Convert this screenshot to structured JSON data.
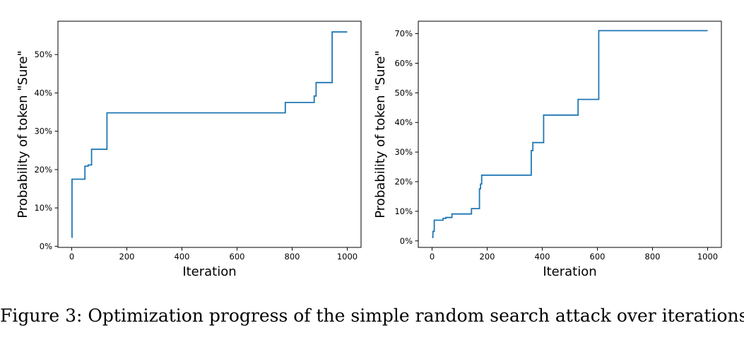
{
  "chart_data": [
    {
      "type": "line",
      "xlabel": "Iteration",
      "ylabel": "Probability of token \"Sure\"",
      "xlim": [
        -50,
        1050
      ],
      "ylim": [
        -0.3,
        58.7
      ],
      "xticks": [
        0,
        200,
        400,
        600,
        800,
        1000
      ],
      "yticks": [
        0,
        10,
        20,
        30,
        40,
        50
      ],
      "ytick_labels": [
        "0%",
        "10%",
        "20%",
        "30%",
        "40%",
        "50%"
      ],
      "grid": false,
      "line_color": "#1f77b4",
      "series": [
        {
          "step": true,
          "x": [
            0,
            1,
            48,
            60,
            72,
            128,
            775,
            880,
            887,
            945,
            1000
          ],
          "y": [
            2.3,
            17.5,
            20.9,
            21.2,
            25.3,
            34.8,
            37.5,
            39.2,
            42.7,
            55.9,
            55.9
          ]
        }
      ]
    },
    {
      "type": "line",
      "xlabel": "Iteration",
      "ylabel": "Probability of token \"Sure\"",
      "xlim": [
        -50,
        1050
      ],
      "ylim": [
        -2.2,
        74.2
      ],
      "xticks": [
        0,
        200,
        400,
        600,
        800,
        1000
      ],
      "yticks": [
        0,
        10,
        20,
        30,
        40,
        50,
        60,
        70
      ],
      "ytick_labels": [
        "0%",
        "10%",
        "20%",
        "30%",
        "40%",
        "50%",
        "60%",
        "70%"
      ],
      "grid": false,
      "line_color": "#1f77b4",
      "series": [
        {
          "step": true,
          "x": [
            0,
            3,
            8,
            40,
            50,
            72,
            143,
            172,
            176,
            180,
            360,
            366,
            375,
            405,
            410,
            530,
            605,
            1000
          ],
          "y": [
            1.2,
            3.2,
            7.0,
            7.6,
            7.9,
            9.1,
            10.9,
            17.6,
            19.2,
            22.2,
            30.5,
            33.2,
            33.2,
            42.5,
            42.5,
            47.8,
            71.0,
            71.0
          ]
        }
      ]
    }
  ],
  "caption": "Figure 3: Optimization progress of the simple random search attack over iterations."
}
